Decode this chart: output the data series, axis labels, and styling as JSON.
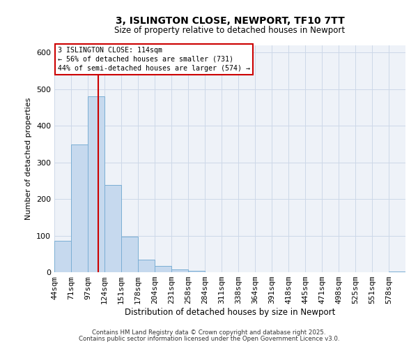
{
  "title": "3, ISLINGTON CLOSE, NEWPORT, TF10 7TT",
  "subtitle": "Size of property relative to detached houses in Newport",
  "xlabel": "Distribution of detached houses by size in Newport",
  "ylabel": "Number of detached properties",
  "bar_labels": [
    "44sqm",
    "71sqm",
    "97sqm",
    "124sqm",
    "151sqm",
    "178sqm",
    "204sqm",
    "231sqm",
    "258sqm",
    "284sqm",
    "311sqm",
    "338sqm",
    "364sqm",
    "391sqm",
    "418sqm",
    "445sqm",
    "471sqm",
    "498sqm",
    "525sqm",
    "551sqm",
    "578sqm"
  ],
  "bar_values": [
    85,
    350,
    480,
    238,
    97,
    35,
    18,
    7,
    4,
    0,
    0,
    0,
    0,
    0,
    0,
    0,
    0,
    0,
    0,
    0,
    2
  ],
  "bar_color": "#c6d9ee",
  "bar_edgecolor": "#7aaed4",
  "annotation_box_text": "3 ISLINGTON CLOSE: 114sqm\n← 56% of detached houses are smaller (731)\n44% of semi-detached houses are larger (574) →",
  "vline_color": "#cc0000",
  "vline_x": 2.63,
  "grid_color": "#ccd8e8",
  "background_color": "#eef2f8",
  "footnote1": "Contains HM Land Registry data © Crown copyright and database right 2025.",
  "footnote2": "Contains public sector information licensed under the Open Government Licence v3.0.",
  "ylim": [
    0,
    620
  ],
  "title_fontsize": 10,
  "subtitle_fontsize": 8.5
}
